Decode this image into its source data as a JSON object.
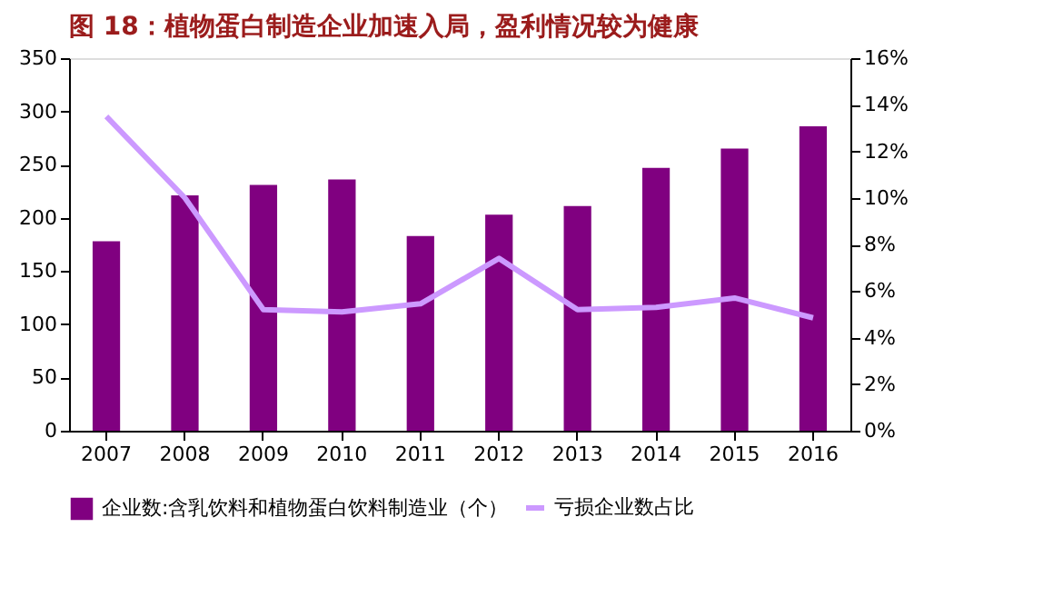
{
  "chart_data": {
    "type": "bar",
    "title": "图 18：植物蛋白制造企业加速入局，盈利情况较为健康",
    "categories": [
      "2007",
      "2008",
      "2009",
      "2010",
      "2011",
      "2012",
      "2013",
      "2014",
      "2015",
      "2016"
    ],
    "series": [
      {
        "name": "企业数:含乳饮料和植物蛋白饮料制造业（个）",
        "color": "#800080",
        "values": [
          178,
          221,
          231,
          236,
          183,
          203,
          211,
          247,
          265,
          286
        ]
      },
      {
        "name": "亏损企业数占比",
        "color": "#cc99ff",
        "type": "line",
        "axis": "y2",
        "values": [
          13.5,
          10.0,
          5.2,
          5.1,
          5.45,
          7.4,
          5.2,
          5.3,
          5.7,
          4.85
        ]
      }
    ],
    "ylim": [
      0,
      350
    ],
    "yticks": [
      0,
      50,
      100,
      150,
      200,
      250,
      300,
      350
    ],
    "y2lim": [
      0,
      16
    ],
    "y2ticks": [
      {
        "value": 0,
        "label": "0%"
      },
      {
        "value": 2,
        "label": "2%"
      },
      {
        "value": 4,
        "label": "4%"
      },
      {
        "value": 6,
        "label": "6%"
      },
      {
        "value": 8,
        "label": "8%"
      },
      {
        "value": 10,
        "label": "10%"
      },
      {
        "value": 12,
        "label": "12%"
      },
      {
        "value": 14,
        "label": "14%"
      },
      {
        "value": 16,
        "label": "16%"
      }
    ],
    "legend": "bottom",
    "grid": false
  }
}
